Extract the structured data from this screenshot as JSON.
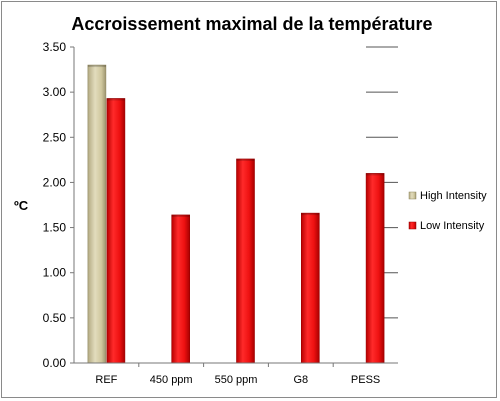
{
  "chart_data": {
    "type": "bar",
    "title": "Accroissement maximal de la température",
    "xlabel": "",
    "ylabel": "ºC",
    "categories": [
      "REF",
      "450 ppm",
      "550 ppm",
      "G8",
      "PESS"
    ],
    "series": [
      {
        "name": "High Intensity",
        "values": [
          3.3,
          null,
          null,
          null,
          null
        ],
        "color": "#cfc79e"
      },
      {
        "name": "Low Intensity",
        "values": [
          2.93,
          1.64,
          2.26,
          1.66,
          2.1
        ],
        "color": "#ee1111"
      }
    ],
    "ylim": [
      0,
      3.5
    ],
    "yticks": [
      "0.00",
      "0.50",
      "1.00",
      "1.50",
      "2.00",
      "2.50",
      "3.00",
      "3.50"
    ],
    "grid": "partial horizontal lines",
    "legend_position": "right"
  }
}
